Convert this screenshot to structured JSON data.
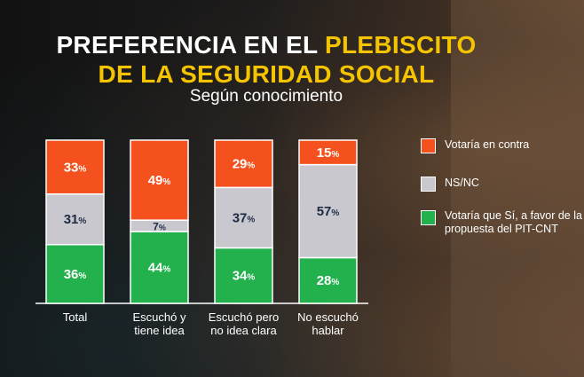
{
  "title": {
    "line1_white": "PREFERENCIA EN EL ",
    "line1_yellow": "PLEBISCITO",
    "line2_yellow": "DE LA SEGURIDAD SOCIAL"
  },
  "subtitle": "Según conocimiento",
  "colors": {
    "contra": "#f4511e",
    "nsnc": "#c9c8cf",
    "favor": "#22b14c",
    "value_dark": "#1f2a44",
    "value_light": "#ffffff"
  },
  "legend": [
    {
      "key": "contra",
      "label": "Votaría en contra"
    },
    {
      "key": "nsnc",
      "label": "NS/NC"
    },
    {
      "key": "favor",
      "label": "Votaría que Sí, a favor de la propuesta del PIT-CNT"
    }
  ],
  "chart_data": {
    "type": "bar",
    "stacked": true,
    "percent_suffix": "%",
    "categories": [
      "Total",
      "Escuchó y tiene idea",
      "Escuchó pero no idea clara",
      "No escuchó hablar"
    ],
    "series": [
      {
        "name": "Votaría que Sí, a favor de la propuesta del PIT-CNT",
        "key": "favor",
        "values": [
          36,
          44,
          34,
          28
        ]
      },
      {
        "name": "NS/NC",
        "key": "nsnc",
        "values": [
          31,
          7,
          37,
          57
        ]
      },
      {
        "name": "Votaría en contra",
        "key": "contra",
        "values": [
          33,
          49,
          29,
          15
        ]
      }
    ],
    "ylim": [
      0,
      100
    ]
  }
}
